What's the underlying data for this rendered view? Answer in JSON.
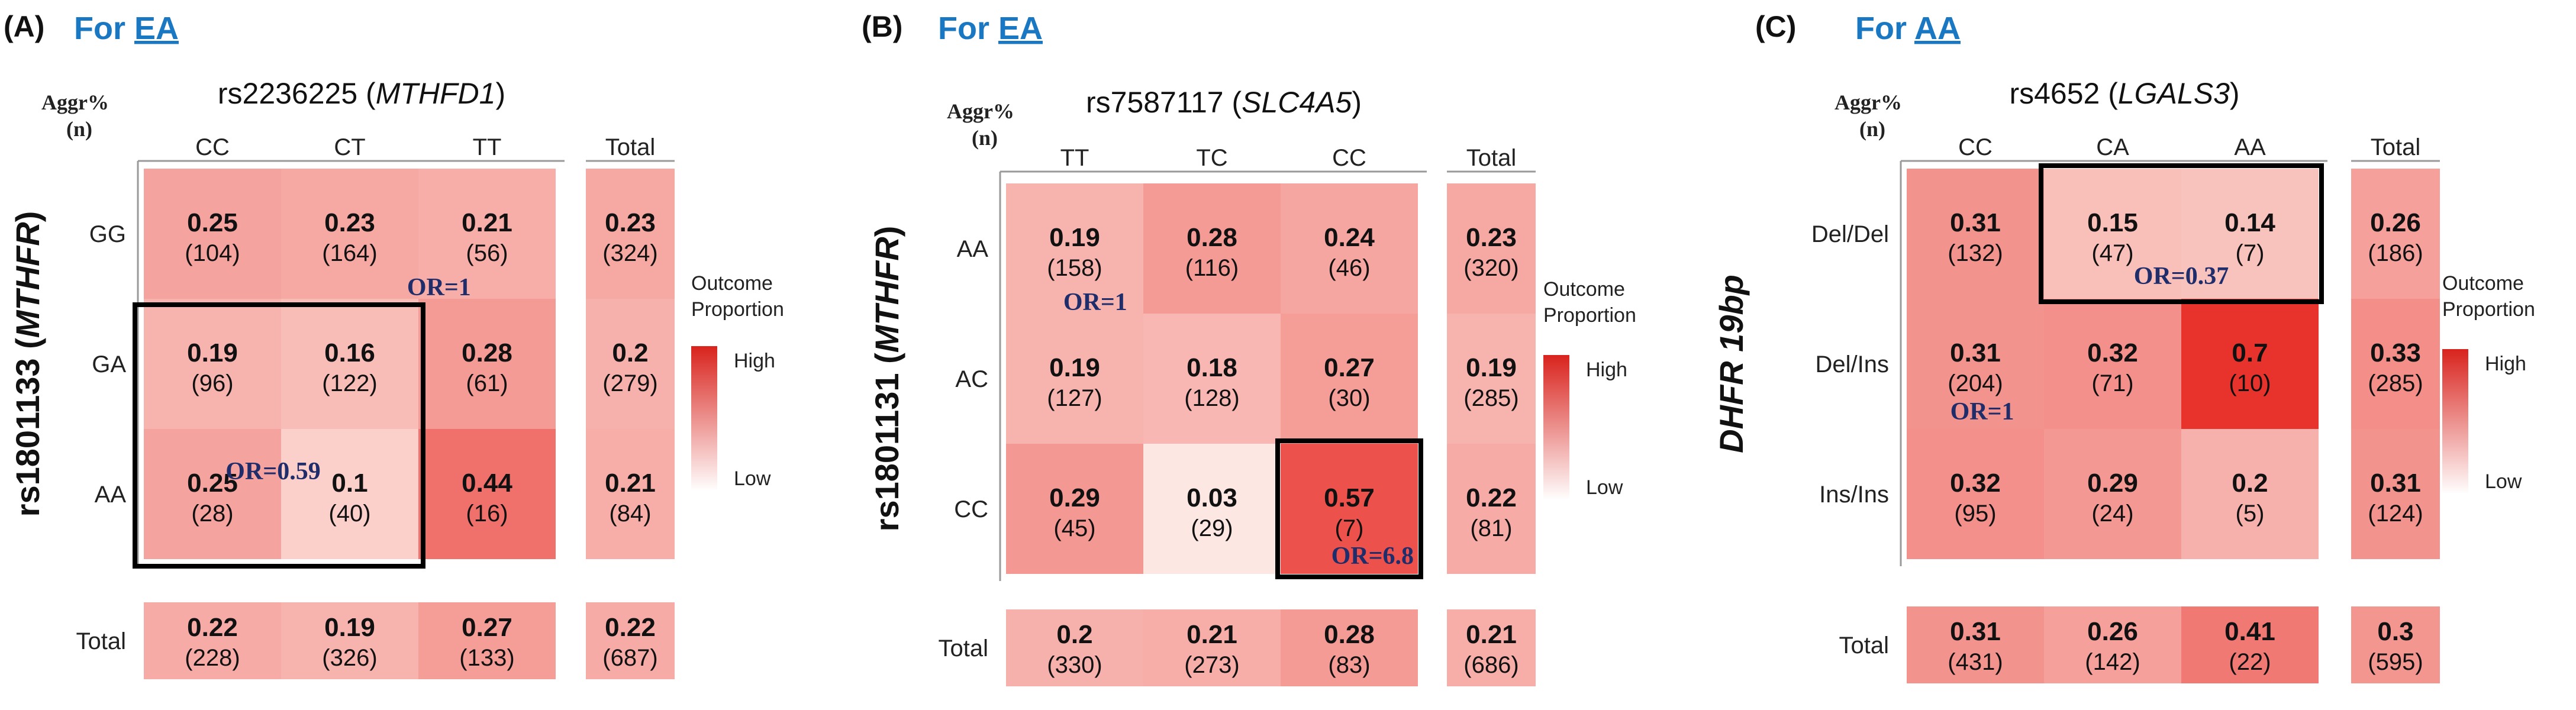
{
  "figure": {
    "colors": {
      "low": "#fff4ef",
      "high": "#e8322c",
      "cell_text": "#111111",
      "or_text": "#1f2d6b",
      "for_label": "#1a78c2",
      "axis_line": "#9a9a9a",
      "box": "#000000"
    },
    "outcome_legend_title_1": "Outcome",
    "outcome_legend_title_2": "Proportion",
    "legend_high": "High",
    "legend_low": "Low",
    "total_label": "Total",
    "aggr_label": "Aggr%",
    "n_label": "(n)"
  },
  "chart_data": [
    {
      "type": "heatmap",
      "panel_label": "(A)",
      "for_prefix": "For ",
      "population": "EA",
      "title_snp": "rs2236225",
      "title_gene": "MTHFD1",
      "row_axis_snp": "rs1801133",
      "row_axis_gene": "MTHFR",
      "col_labels": [
        "CC",
        "CT",
        "TT"
      ],
      "row_labels": [
        "GG",
        "GA",
        "AA"
      ],
      "values": [
        [
          0.25,
          0.23,
          0.21
        ],
        [
          0.19,
          0.16,
          0.28
        ],
        [
          0.25,
          0.1,
          0.44
        ]
      ],
      "counts": [
        [
          104,
          164,
          56
        ],
        [
          96,
          122,
          61
        ],
        [
          28,
          40,
          16
        ]
      ],
      "row_totals": {
        "values": [
          0.23,
          0.2,
          0.21
        ],
        "counts": [
          324,
          279,
          84
        ]
      },
      "col_totals": {
        "values": [
          0.22,
          0.19,
          0.27
        ],
        "counts": [
          228,
          326,
          133
        ]
      },
      "grand_total": {
        "value": 0.22,
        "count": 687
      },
      "odds_ratios": [
        {
          "label": "OR=1",
          "anchor_row": 0,
          "anchor_col": 1
        },
        {
          "label": "OR=0.59",
          "boxed_rows": [
            1,
            2
          ],
          "boxed_cols": [
            0,
            1
          ]
        }
      ]
    },
    {
      "type": "heatmap",
      "panel_label": "(B)",
      "for_prefix": "For ",
      "population": "EA",
      "title_snp": "rs7587117",
      "title_gene": "SLC4A5",
      "row_axis_snp": "rs1801131",
      "row_axis_gene": "MTHFR",
      "col_labels": [
        "TT",
        "TC",
        "CC"
      ],
      "row_labels": [
        "AA",
        "AC",
        "CC"
      ],
      "values": [
        [
          0.19,
          0.28,
          0.24
        ],
        [
          0.19,
          0.18,
          0.27
        ],
        [
          0.29,
          0.03,
          0.57
        ]
      ],
      "counts": [
        [
          158,
          116,
          46
        ],
        [
          127,
          128,
          30
        ],
        [
          45,
          29,
          7
        ]
      ],
      "row_totals": {
        "values": [
          0.23,
          0.19,
          0.22
        ],
        "counts": [
          320,
          285,
          81
        ]
      },
      "col_totals": {
        "values": [
          0.2,
          0.21,
          0.28
        ],
        "counts": [
          330,
          273,
          83
        ]
      },
      "grand_total": {
        "value": 0.21,
        "count": 686
      },
      "odds_ratios": [
        {
          "label": "OR=1",
          "anchor_row": 0,
          "anchor_col": 0
        },
        {
          "label": "OR=6.8",
          "boxed_rows": [
            2,
            2
          ],
          "boxed_cols": [
            2,
            2
          ]
        }
      ]
    },
    {
      "type": "heatmap",
      "panel_label": "(C)",
      "for_prefix": "For ",
      "population": "AA",
      "title_snp": "rs4652",
      "title_gene": "LGALS3",
      "row_axis_snp": "DHFR 19bp",
      "row_axis_gene": "",
      "col_labels": [
        "CC",
        "CA",
        "AA"
      ],
      "row_labels": [
        "Del/Del",
        "Del/Ins",
        "Ins/Ins"
      ],
      "values": [
        [
          0.31,
          0.15,
          0.14
        ],
        [
          0.31,
          0.32,
          0.7
        ],
        [
          0.32,
          0.29,
          0.2
        ]
      ],
      "counts": [
        [
          132,
          47,
          7
        ],
        [
          204,
          71,
          10
        ],
        [
          95,
          24,
          5
        ]
      ],
      "row_totals": {
        "values": [
          0.26,
          0.33,
          0.31
        ],
        "counts": [
          186,
          285,
          124
        ]
      },
      "col_totals": {
        "values": [
          0.31,
          0.26,
          0.41
        ],
        "counts": [
          431,
          142,
          22
        ]
      },
      "grand_total": {
        "value": 0.3,
        "count": 595
      },
      "odds_ratios": [
        {
          "label": "OR=1",
          "anchor_row": 1,
          "anchor_col": 0
        },
        {
          "label": "OR=0.37",
          "boxed_rows": [
            0,
            0
          ],
          "boxed_cols": [
            1,
            2
          ]
        }
      ]
    }
  ]
}
